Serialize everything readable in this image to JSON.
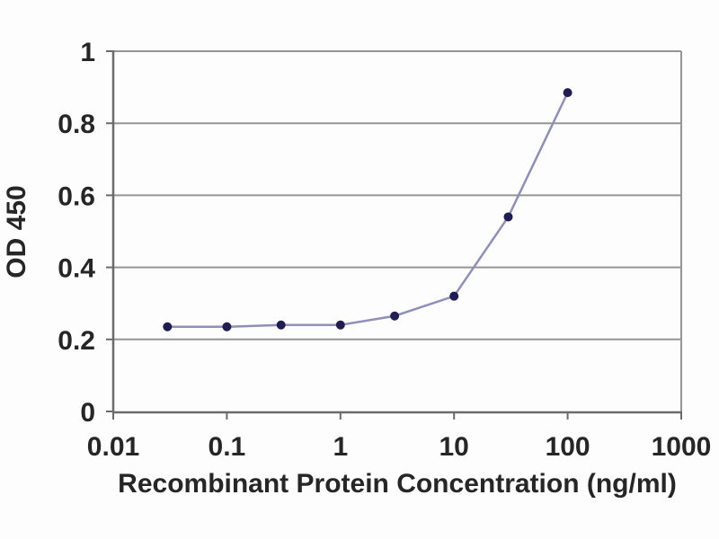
{
  "chart_data": {
    "type": "line",
    "title": "",
    "xlabel": "Recombinant Protein Concentration (ng/ml)",
    "ylabel": "OD 450",
    "x_scale": "log",
    "xlim": [
      0.01,
      1000
    ],
    "ylim": [
      0,
      1
    ],
    "x_ticks": [
      0.01,
      0.1,
      1,
      10,
      100,
      1000
    ],
    "x_tick_labels": [
      "0.01",
      "0.1",
      "1",
      "10",
      "100",
      "1000"
    ],
    "y_ticks": [
      0,
      0.2,
      0.4,
      0.6,
      0.8,
      1
    ],
    "y_tick_labels": [
      "0",
      "0.2",
      "0.4",
      "0.6",
      "0.8",
      "1"
    ],
    "grid": "horizontal",
    "legend_position": "none",
    "series": [
      {
        "name": "OD 450",
        "x": [
          0.03,
          0.1,
          0.3,
          1,
          3,
          10,
          30,
          100
        ],
        "y": [
          0.235,
          0.235,
          0.24,
          0.24,
          0.265,
          0.32,
          0.54,
          0.885
        ]
      }
    ],
    "colors": {
      "line": "#8f8fb8",
      "marker": "#201c54",
      "grid": "#959595",
      "axis": "#6b6b6b",
      "text": "#262626",
      "background": "#fdfdfd"
    }
  }
}
